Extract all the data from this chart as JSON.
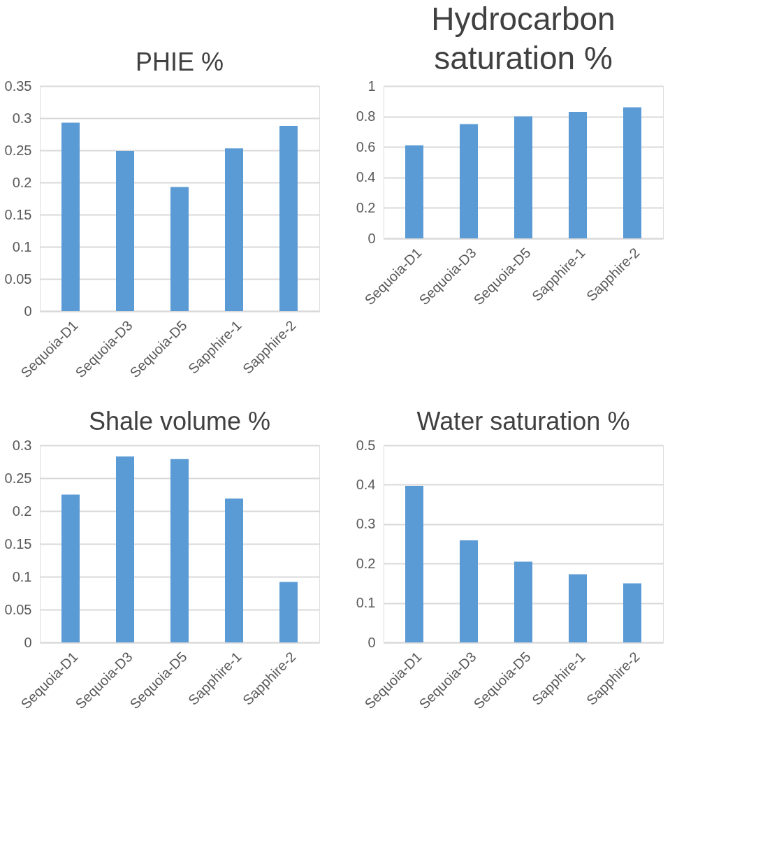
{
  "chart_data": [
    {
      "type": "bar",
      "title": "PHIE %",
      "categories": [
        "Sequoia-D1",
        "Sequoia-D3",
        "Sequoia-D5",
        "Sapphire-1",
        "Sapphire-2"
      ],
      "values": [
        0.293,
        0.249,
        0.193,
        0.253,
        0.288
      ],
      "color": "#5b9bd5",
      "ylim": [
        0,
        0.35
      ],
      "yticks": [
        0,
        0.05,
        0.1,
        0.15,
        0.2,
        0.25,
        0.3,
        0.35
      ],
      "grid": "y"
    },
    {
      "type": "bar",
      "title": "Hydrocarbon saturation %",
      "categories": [
        "Sequoia-D1",
        "Sequoia-D3",
        "Sequoia-D5",
        "Sapphire-1",
        "Sapphire-2"
      ],
      "values": [
        0.61,
        0.75,
        0.8,
        0.83,
        0.86
      ],
      "color": "#5b9bd5",
      "ylim": [
        0,
        1
      ],
      "yticks": [
        0,
        0.2,
        0.4,
        0.6,
        0.8,
        1
      ],
      "grid": "y"
    },
    {
      "type": "bar",
      "title": "Shale volume %",
      "categories": [
        "Sequoia-D1",
        "Sequoia-D3",
        "Sequoia-D5",
        "Sapphire-1",
        "Sapphire-2"
      ],
      "values": [
        0.225,
        0.283,
        0.279,
        0.219,
        0.092
      ],
      "color": "#5b9bd5",
      "ylim": [
        0,
        0.3
      ],
      "yticks": [
        0,
        0.05,
        0.1,
        0.15,
        0.2,
        0.25,
        0.3
      ],
      "grid": "y"
    },
    {
      "type": "bar",
      "title": "Water saturation %",
      "categories": [
        "Sequoia-D1",
        "Sequoia-D3",
        "Sequoia-D5",
        "Sapphire-1",
        "Sapphire-2"
      ],
      "values": [
        0.397,
        0.259,
        0.205,
        0.173,
        0.15
      ],
      "color": "#5b9bd5",
      "ylim": [
        0,
        0.5
      ],
      "yticks": [
        0,
        0.1,
        0.2,
        0.3,
        0.4,
        0.5
      ],
      "grid": "y"
    }
  ]
}
